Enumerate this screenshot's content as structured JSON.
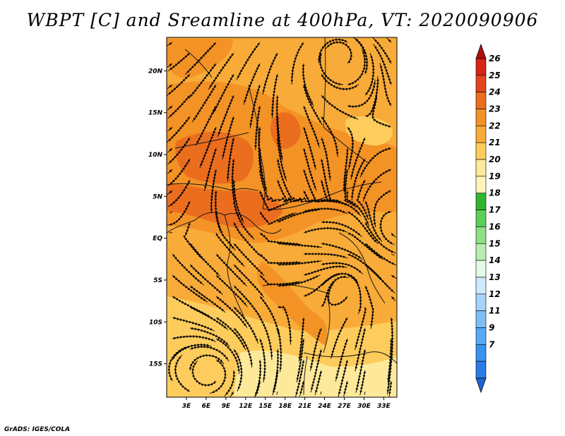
{
  "title": "WBPT [C] and Sreamline at 400hPa, VT: 2020090906",
  "footer": "GrADS: IGES/COLA",
  "map": {
    "region": {
      "lon_min": 0,
      "lon_max": 35,
      "lat_min": -19,
      "lat_max": 24
    },
    "lat_ticks": [
      {
        "value": 20,
        "label": "20N"
      },
      {
        "value": 15,
        "label": "15N"
      },
      {
        "value": 10,
        "label": "10N"
      },
      {
        "value": 5,
        "label": "5N"
      },
      {
        "value": 0,
        "label": "EQ"
      },
      {
        "value": -5,
        "label": "5S"
      },
      {
        "value": -10,
        "label": "10S"
      },
      {
        "value": -15,
        "label": "15S"
      }
    ],
    "lon_ticks": [
      {
        "value": 3,
        "label": "3E"
      },
      {
        "value": 6,
        "label": "6E"
      },
      {
        "value": 9,
        "label": "9E"
      },
      {
        "value": 12,
        "label": "12E"
      },
      {
        "value": 15,
        "label": "15E"
      },
      {
        "value": 18,
        "label": "18E"
      },
      {
        "value": 21,
        "label": "21E"
      },
      {
        "value": 24,
        "label": "24E"
      },
      {
        "value": 27,
        "label": "27E"
      },
      {
        "value": 30,
        "label": "30E"
      },
      {
        "value": 33,
        "label": "33E"
      }
    ],
    "field_colors": {
      "c19": "#fee99a",
      "c20": "#fdcc5c",
      "c21": "#f8ab38",
      "c22": "#f39225",
      "c23": "#eb6e1f"
    },
    "streamline_color": "#000000"
  },
  "colorbar": {
    "levels": [
      "7",
      "9",
      "11",
      "12",
      "13",
      "14",
      "15",
      "16",
      "17",
      "18",
      "19",
      "20",
      "21",
      "22",
      "23",
      "24",
      "25",
      "26"
    ],
    "colors": [
      "#1f63d6",
      "#2a7be6",
      "#3a92ef",
      "#56a9f4",
      "#7ebdf7",
      "#a4d2f9",
      "#cfe8fc",
      "#e6f8e6",
      "#b9ecb0",
      "#8fdf85",
      "#5bcf56",
      "#2fb52f",
      "#fdf5b9",
      "#fee99a",
      "#fdcc5c",
      "#f8ab38",
      "#f39225",
      "#eb6e1f",
      "#e4451c",
      "#d52514",
      "#b0100c"
    ]
  }
}
